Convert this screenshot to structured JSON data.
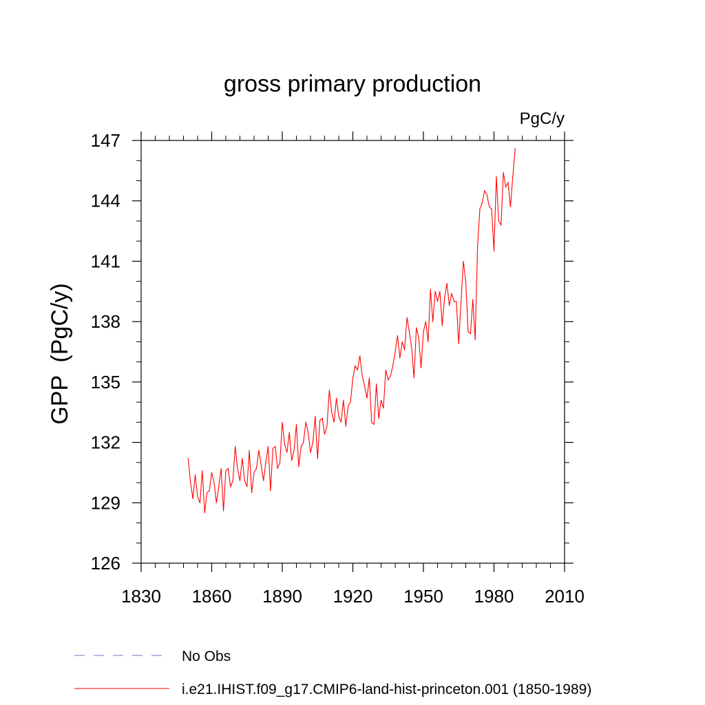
{
  "chart_data": {
    "type": "line",
    "title": "gross primary production",
    "units_label": "PgC/y",
    "ylabel": "GPP  (PgC/y)",
    "xlabel": "",
    "xlim": [
      1830,
      2010
    ],
    "ylim": [
      126,
      147
    ],
    "x_ticks": [
      1830,
      1860,
      1890,
      1920,
      1950,
      1980,
      2010
    ],
    "y_ticks": [
      126,
      129,
      132,
      135,
      138,
      141,
      144,
      147
    ],
    "grid": false,
    "legend_position": "bottom",
    "series": [
      {
        "name": "No Obs",
        "color": "#7b6fc4",
        "style": "dashed",
        "x": [],
        "values": []
      },
      {
        "name": "i.e21.IHIST.f09_g17.CMIP6-land-hist-princeton.001 (1850-1989)",
        "color": "#ff0000",
        "style": "solid",
        "x": [
          1850,
          1851,
          1852,
          1853,
          1854,
          1855,
          1856,
          1857,
          1858,
          1859,
          1860,
          1861,
          1862,
          1863,
          1864,
          1865,
          1866,
          1867,
          1868,
          1869,
          1870,
          1871,
          1872,
          1873,
          1874,
          1875,
          1876,
          1877,
          1878,
          1879,
          1880,
          1881,
          1882,
          1883,
          1884,
          1885,
          1886,
          1887,
          1888,
          1889,
          1890,
          1891,
          1892,
          1893,
          1894,
          1895,
          1896,
          1897,
          1898,
          1899,
          1900,
          1901,
          1902,
          1903,
          1904,
          1905,
          1906,
          1907,
          1908,
          1909,
          1910,
          1911,
          1912,
          1913,
          1914,
          1915,
          1916,
          1917,
          1918,
          1919,
          1920,
          1921,
          1922,
          1923,
          1924,
          1925,
          1926,
          1927,
          1928,
          1929,
          1930,
          1931,
          1932,
          1933,
          1934,
          1935,
          1936,
          1937,
          1938,
          1939,
          1940,
          1941,
          1942,
          1943,
          1944,
          1945,
          1946,
          1947,
          1948,
          1949,
          1950,
          1951,
          1952,
          1953,
          1954,
          1955,
          1956,
          1957,
          1958,
          1959,
          1960,
          1961,
          1962,
          1963,
          1964,
          1965,
          1966,
          1967,
          1968,
          1969,
          1970,
          1971,
          1972,
          1973,
          1974,
          1975,
          1976,
          1977,
          1978,
          1979,
          1980,
          1981,
          1982,
          1983,
          1984,
          1985,
          1986,
          1987,
          1988,
          1989
        ],
        "values": [
          131.2,
          130.0,
          129.2,
          130.4,
          129.3,
          129.0,
          130.6,
          128.5,
          129.5,
          129.6,
          130.5,
          130.0,
          129.0,
          129.8,
          130.7,
          128.6,
          130.6,
          130.7,
          129.8,
          130.1,
          131.8,
          130.7,
          130.1,
          131.2,
          130.1,
          129.8,
          131.6,
          129.5,
          130.5,
          130.7,
          131.6,
          130.9,
          130.1,
          131.0,
          131.8,
          129.6,
          131.7,
          131.8,
          130.7,
          131.0,
          133.0,
          131.9,
          131.5,
          132.5,
          131.1,
          131.6,
          132.9,
          130.8,
          131.8,
          132.0,
          133.0,
          132.5,
          131.5,
          132.0,
          133.3,
          131.2,
          133.1,
          133.2,
          132.4,
          132.8,
          134.6,
          133.5,
          133.0,
          134.2,
          133.3,
          133.0,
          134.1,
          132.8,
          133.8,
          134.0,
          135.2,
          135.8,
          135.6,
          136.3,
          135.3,
          134.8,
          134.2,
          135.2,
          133.0,
          132.9,
          134.9,
          133.2,
          134.1,
          133.7,
          135.6,
          135.1,
          135.3,
          135.8,
          136.5,
          137.3,
          136.2,
          137.0,
          136.6,
          138.2,
          137.5,
          136.7,
          135.2,
          137.7,
          137.2,
          135.7,
          137.5,
          138.0,
          137.0,
          139.6,
          138.0,
          139.5,
          139.0,
          139.5,
          137.8,
          139.2,
          139.9,
          138.8,
          139.4,
          139.0,
          139.0,
          136.9,
          139.0,
          141.0,
          140.0,
          137.5,
          137.4,
          139.1,
          137.1,
          141.7,
          143.6,
          143.9,
          144.5,
          144.3,
          143.7,
          143.6,
          141.5,
          145.2,
          143.0,
          142.8,
          145.4,
          144.7,
          144.9,
          143.7,
          145.2,
          146.6
        ]
      }
    ]
  }
}
